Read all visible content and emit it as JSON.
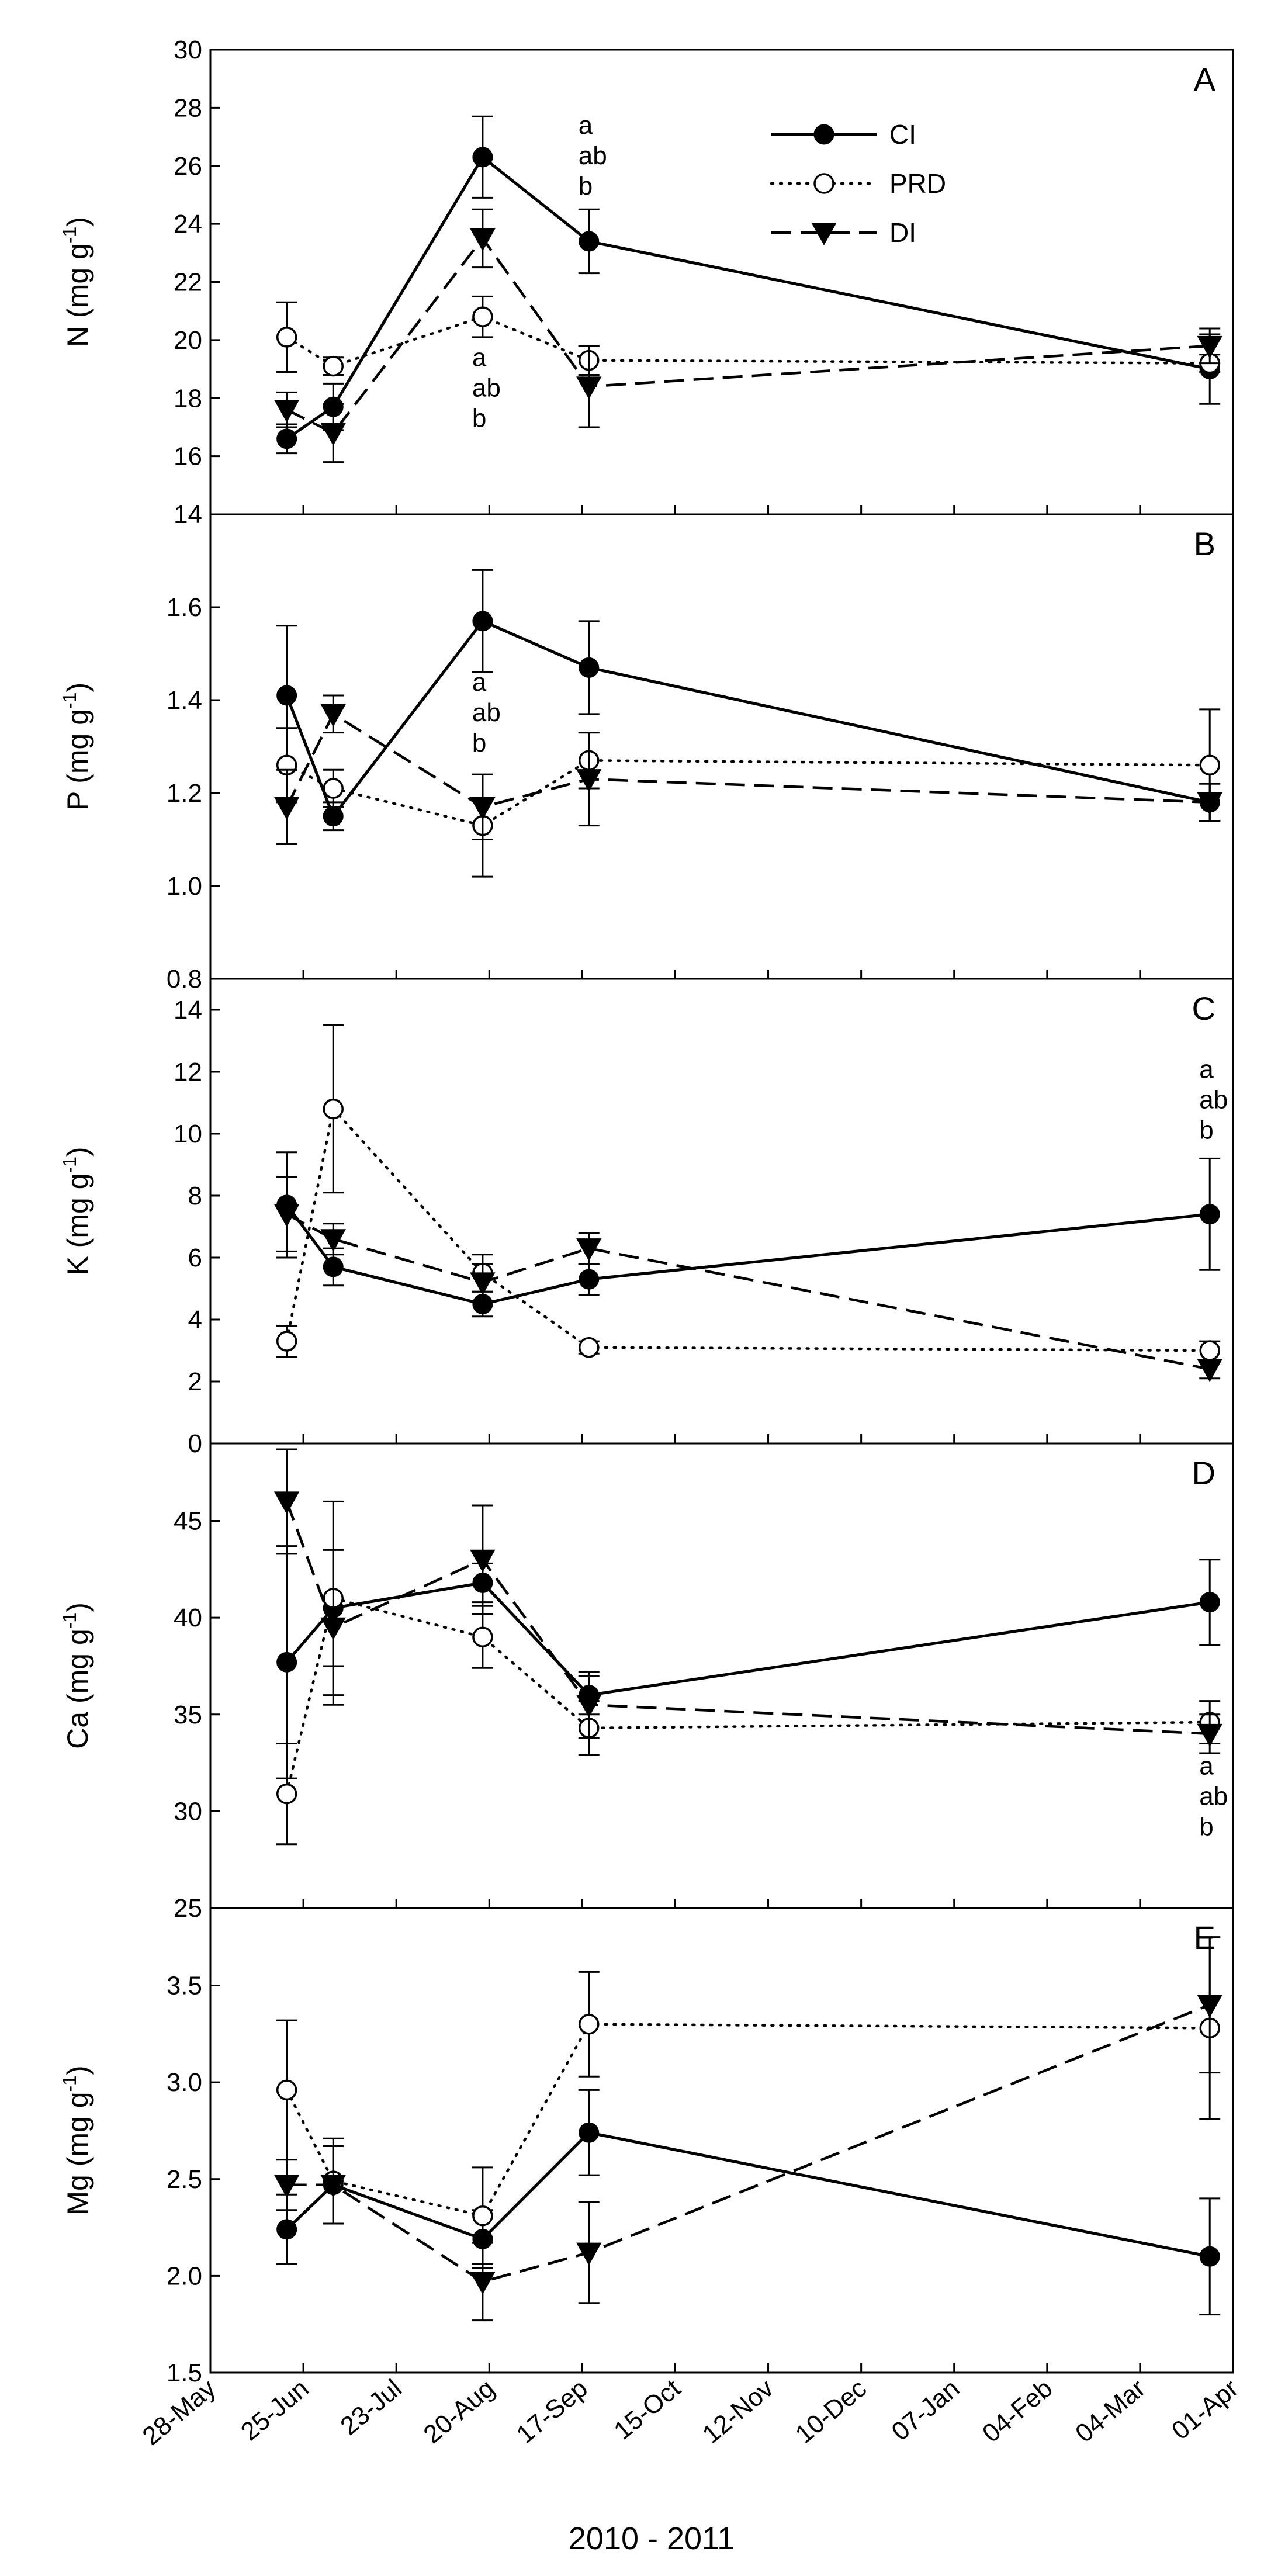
{
  "chart_data": {
    "type": "line",
    "xlabel": "2010 - 2011",
    "x_dates": [
      "28-May",
      "25-Jun",
      "23-Jul",
      "20-Aug",
      "17-Sep",
      "15-Oct",
      "12-Nov",
      "10-Dec",
      "07-Jan",
      "04-Feb",
      "04-Mar",
      "01-Apr"
    ],
    "x_tick_days": [
      0,
      28,
      56,
      84,
      112,
      140,
      168,
      196,
      224,
      252,
      280,
      308
    ],
    "sample_days": [
      23,
      37,
      82,
      114,
      301
    ],
    "legend": [
      {
        "key": "CI",
        "label": "CI",
        "marker": "filled-circle",
        "dash": "solid"
      },
      {
        "key": "PRD",
        "label": "PRD",
        "marker": "open-circle",
        "dash": "dotted"
      },
      {
        "key": "DI",
        "label": "DI",
        "marker": "filled-triangle-down",
        "dash": "dashed"
      }
    ],
    "panels": [
      {
        "letter": "A",
        "ylabel_main": "N (mg g",
        "ylabel_sup": "-1",
        "ylabel_close": ")",
        "ylim": [
          14,
          30
        ],
        "yticks": [
          "14",
          "16",
          "18",
          "20",
          "22",
          "24",
          "26",
          "28",
          "30"
        ],
        "series": {
          "CI": {
            "values": [
              16.6,
              17.7,
              26.3,
              23.4,
              19.0
            ],
            "errors": [
              0.5,
              0.8,
              1.4,
              1.1,
              1.2
            ]
          },
          "PRD": {
            "values": [
              20.1,
              19.1,
              20.8,
              19.3,
              19.2
            ],
            "errors": [
              1.2,
              0.3,
              0.7,
              0.5,
              0.3
            ]
          },
          "DI": {
            "values": [
              17.6,
              16.8,
              23.5,
              18.4,
              19.8
            ],
            "errors": [
              0.6,
              1.0,
              1.0,
              1.4,
              0.6
            ]
          }
        },
        "annotations": [
          {
            "day": 114,
            "value": 27.1,
            "lines": [
              "a",
              "ab",
              "b"
            ]
          },
          {
            "day": 82,
            "value": 19.1,
            "lines": [
              "a",
              "ab",
              "b"
            ]
          }
        ]
      },
      {
        "letter": "B",
        "ylabel_main": "P (mg g",
        "ylabel_sup": "-1",
        "ylabel_close": ")",
        "ylim": [
          0.8,
          1.8
        ],
        "yticks": [
          "0.8",
          "1.0",
          "1.2",
          "1.4",
          "1.6"
        ],
        "series": {
          "CI": {
            "values": [
              1.41,
              1.15,
              1.57,
              1.47,
              1.18
            ],
            "errors": [
              0.15,
              0.03,
              0.11,
              0.1,
              0.04
            ]
          },
          "PRD": {
            "values": [
              1.26,
              1.21,
              1.13,
              1.27,
              1.26
            ],
            "errors": [
              0.08,
              0.04,
              0.11,
              0.06,
              0.12
            ]
          },
          "DI": {
            "values": [
              1.17,
              1.37,
              1.17,
              1.23,
              1.18
            ],
            "errors": [
              0.08,
              0.04,
              0.07,
              0.1,
              0.04
            ]
          }
        },
        "annotations": [
          {
            "day": 82,
            "value": 1.42,
            "lines": [
              "a",
              "ab",
              "b"
            ]
          }
        ]
      },
      {
        "letter": "C",
        "ylabel_main": "K (mg g",
        "ylabel_sup": "-1",
        "ylabel_close": ")",
        "ylim": [
          0,
          15
        ],
        "yticks": [
          "0",
          "2",
          "4",
          "6",
          "8",
          "10",
          "12",
          "14"
        ],
        "series": {
          "CI": {
            "values": [
              7.7,
              5.7,
              4.5,
              5.3,
              7.4
            ],
            "errors": [
              1.7,
              0.6,
              0.4,
              0.5,
              1.8
            ]
          },
          "PRD": {
            "values": [
              3.3,
              10.8,
              5.5,
              3.1,
              3.0
            ],
            "errors": [
              0.5,
              2.7,
              0.6,
              0.2,
              0.3
            ]
          },
          "DI": {
            "values": [
              7.4,
              6.6,
              5.2,
              6.3,
              2.4
            ],
            "errors": [
              1.2,
              0.5,
              0.6,
              0.5,
              0.3
            ]
          }
        },
        "annotations": [
          {
            "day": 301,
            "value": 11.8,
            "lines": [
              "a",
              "ab",
              "b"
            ]
          }
        ]
      },
      {
        "letter": "D",
        "ylabel_main": "Ca (mg g",
        "ylabel_sup": "-1",
        "ylabel_close": ")",
        "ylim": [
          25,
          49
        ],
        "yticks": [
          "25",
          "30",
          "35",
          "40",
          "45"
        ],
        "series": {
          "CI": {
            "values": [
              37.7,
              40.5,
              41.8,
              36.0,
              40.8
            ],
            "errors": [
              6.0,
              3.0,
              1.0,
              1.0,
              2.2
            ]
          },
          "PRD": {
            "values": [
              30.9,
              41.0,
              39.0,
              34.3,
              34.6
            ],
            "errors": [
              2.6,
              5.0,
              1.6,
              1.4,
              1.1
            ]
          },
          "DI": {
            "values": [
              46.0,
              39.5,
              43.0,
              35.5,
              34.0
            ],
            "errors": [
              2.7,
              4.0,
              2.8,
              1.7,
              1.0
            ]
          }
        },
        "annotations": [
          {
            "day": 301,
            "value": 31.9,
            "lines": [
              "a",
              "ab",
              "b"
            ]
          }
        ]
      },
      {
        "letter": "E",
        "ylabel_main": "Mg (mg g",
        "ylabel_sup": "-1",
        "ylabel_close": ")",
        "ylim": [
          1.5,
          3.9
        ],
        "yticks": [
          "1.5",
          "2.0",
          "2.5",
          "3.0",
          "3.5"
        ],
        "series": {
          "CI": {
            "values": [
              2.24,
              2.47,
              2.19,
              2.74,
              2.1
            ],
            "errors": [
              0.18,
              0.2,
              0.15,
              0.22,
              0.3
            ]
          },
          "PRD": {
            "values": [
              2.96,
              2.49,
              2.31,
              3.3,
              3.28
            ],
            "errors": [
              0.36,
              0.22,
              0.25,
              0.27,
              0.47
            ]
          },
          "DI": {
            "values": [
              2.47,
              2.47,
              1.97,
              2.12,
              3.4
            ],
            "errors": [
              0.13,
              0.2,
              0.2,
              0.26,
              0.35
            ]
          }
        },
        "annotations": []
      }
    ]
  }
}
